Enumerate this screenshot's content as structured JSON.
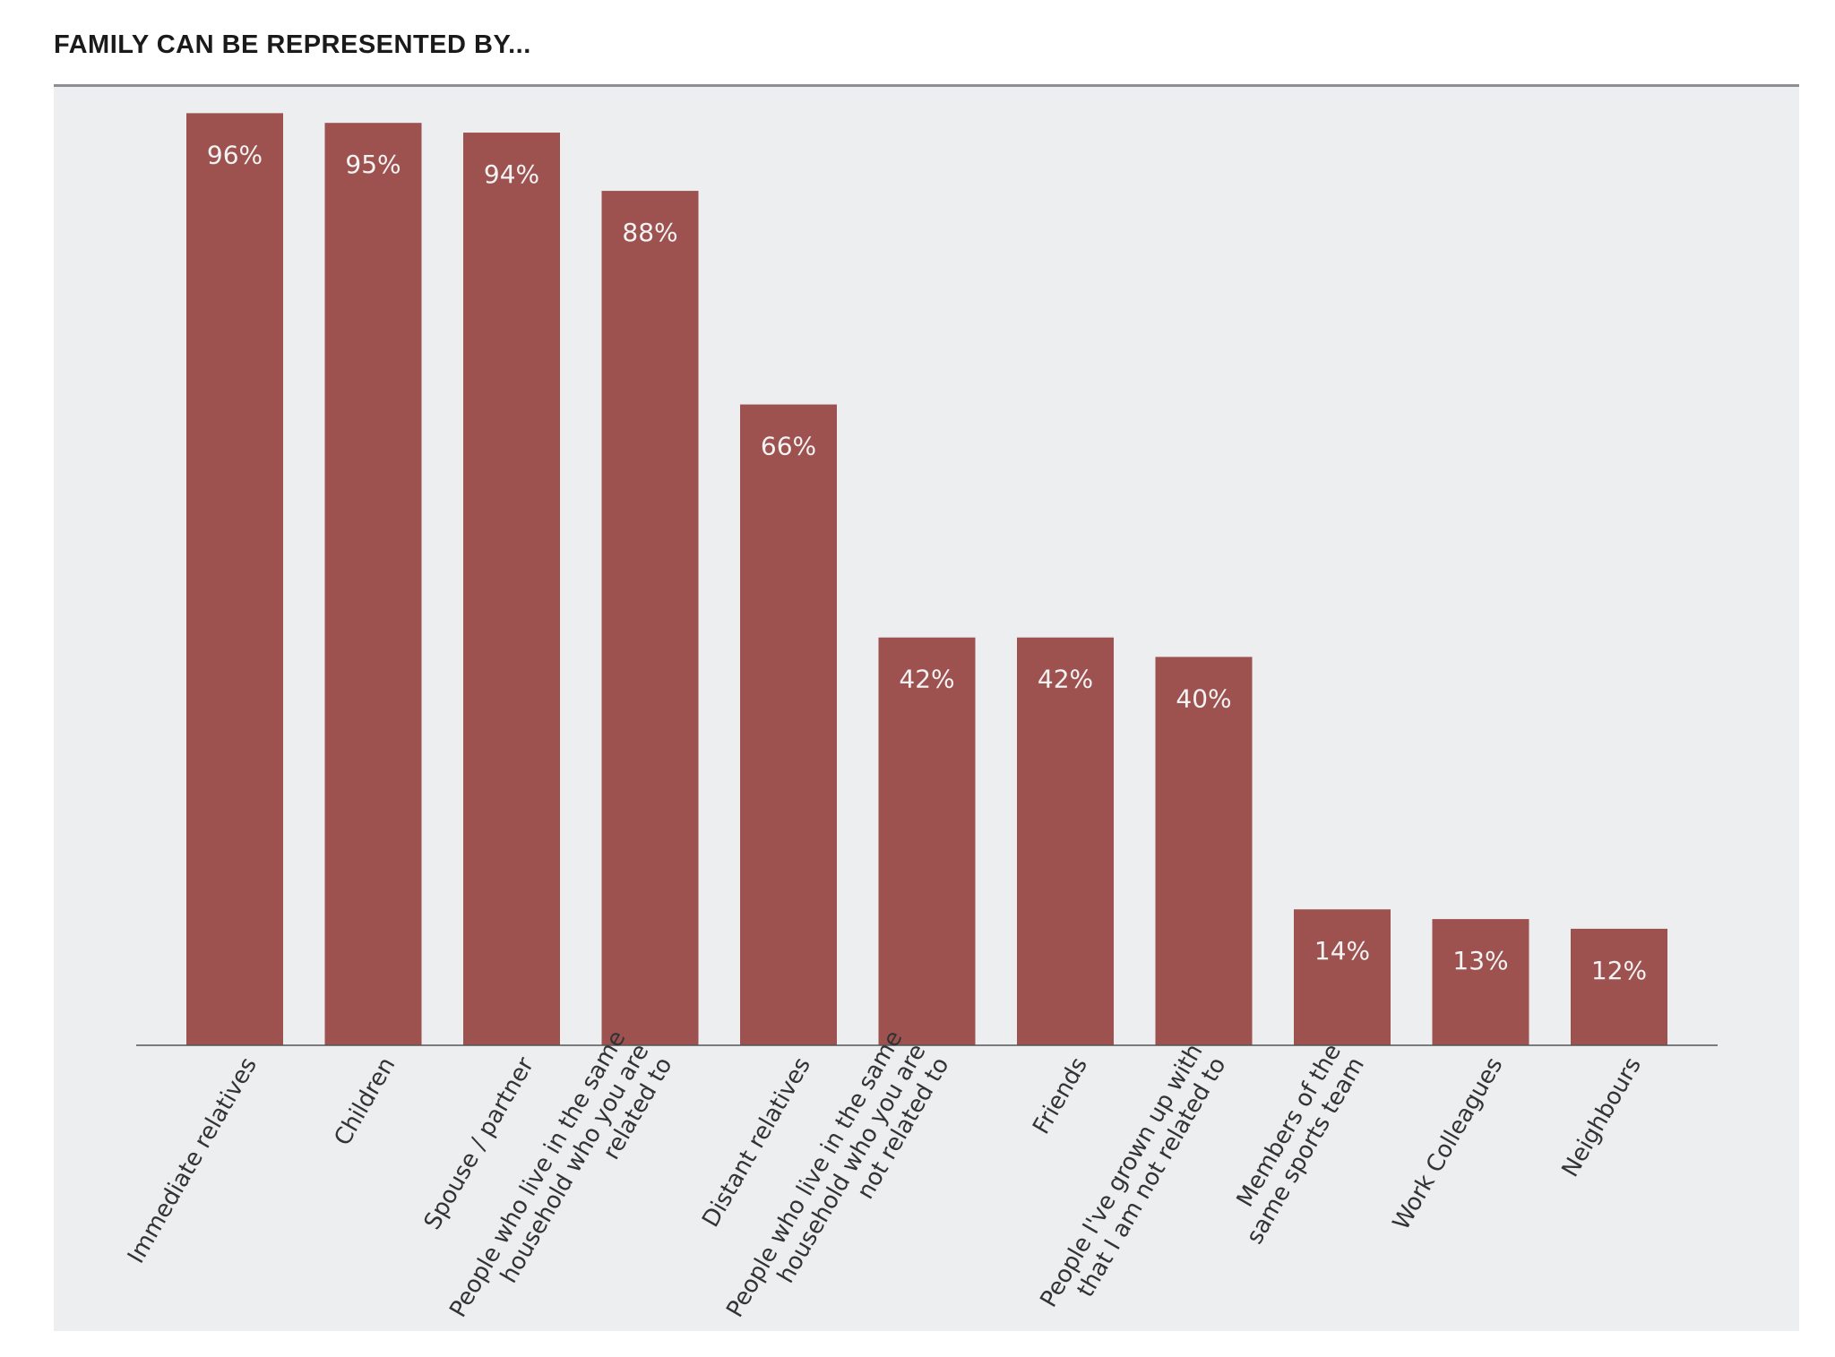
{
  "chart_data": {
    "type": "bar",
    "title": "FAMILY CAN BE REPRESENTED BY...",
    "xlabel": "",
    "ylabel": "",
    "ylim": [
      0,
      100
    ],
    "grid": false,
    "bar_color": "#9e5250",
    "label_color": "#f3f3f3",
    "panel_color": "#edeef0",
    "categories": [
      [
        "Immediate relatives"
      ],
      [
        "Children"
      ],
      [
        "Spouse / partner"
      ],
      [
        "People who live in the same",
        "household who you are",
        "related to"
      ],
      [
        "Distant relatives"
      ],
      [
        "People who live in the same",
        "household who you are",
        "not related to"
      ],
      [
        "Friends"
      ],
      [
        "People I've grown up with",
        "that I am not related to"
      ],
      [
        "Members of the",
        "same sports team"
      ],
      [
        "Work Colleagues"
      ],
      [
        "Neighbours"
      ]
    ],
    "values": [
      96,
      95,
      94,
      88,
      66,
      42,
      42,
      40,
      14,
      13,
      12
    ],
    "value_labels": [
      "96%",
      "95%",
      "94%",
      "88%",
      "66%",
      "42%",
      "42%",
      "40%",
      "14%",
      "13%",
      "12%"
    ]
  }
}
